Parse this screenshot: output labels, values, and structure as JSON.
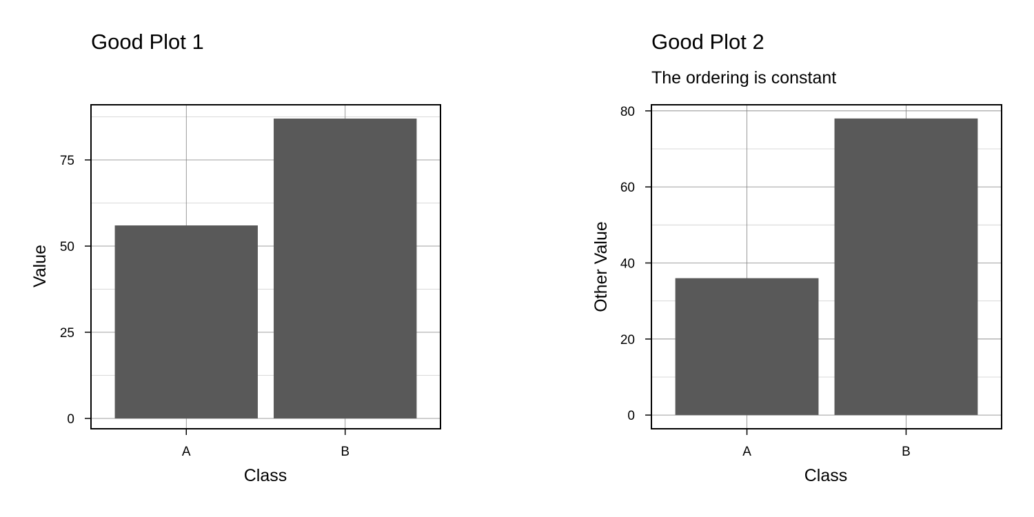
{
  "colors": {
    "bar_fill": "#595959",
    "panel_border": "#000000",
    "major_grid": "#7f7f7f",
    "minor_grid": "#cccccc",
    "background": "#ffffff"
  },
  "chart_data": [
    {
      "type": "bar",
      "title": "Good Plot 1",
      "subtitle": "",
      "xlabel": "Class",
      "ylabel": "Value",
      "categories": [
        "A",
        "B"
      ],
      "values": [
        56,
        87
      ],
      "ylim": [
        -3,
        91
      ],
      "yticks": [
        0,
        25,
        50,
        75
      ],
      "ytick_labels": [
        "0",
        "25",
        "50",
        "75"
      ],
      "grid": true
    },
    {
      "type": "bar",
      "title": "Good Plot 2",
      "subtitle": "The ordering is constant",
      "xlabel": "Class",
      "ylabel": "Other Value",
      "categories": [
        "A",
        "B"
      ],
      "values": [
        36,
        78
      ],
      "ylim": [
        -3.6,
        81.6
      ],
      "yticks": [
        0,
        20,
        40,
        60,
        80
      ],
      "ytick_labels": [
        "0",
        "20",
        "40",
        "60",
        "80"
      ],
      "grid": true
    }
  ]
}
